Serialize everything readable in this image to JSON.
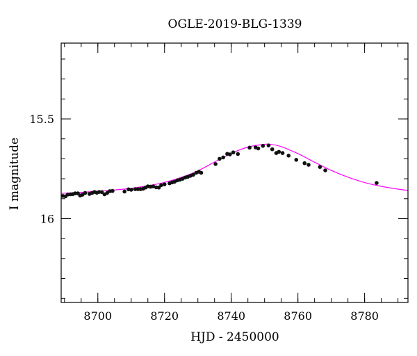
{
  "chart_data": {
    "type": "scatter",
    "title": "OGLE-2019-BLG-1339",
    "xlabel": "HJD - 2450000",
    "ylabel": "I magnitude",
    "xlim": [
      8689,
      8793
    ],
    "ylim": [
      16.42,
      15.12
    ],
    "y_inverted": true,
    "grid": false,
    "x_ticks": [
      8700,
      8720,
      8740,
      8760,
      8780
    ],
    "x_tick_labels": [
      "8700",
      "8720",
      "8740",
      "8760",
      "8780"
    ],
    "y_ticks": [
      15.5,
      16
    ],
    "y_tick_labels": [
      "15.5",
      "16"
    ],
    "x_minor_step": 5,
    "y_minor_step": 0.1,
    "colors": {
      "points": "#111111",
      "model": "#ff00ff",
      "axes": "#000000"
    },
    "series": [
      {
        "type": "scatter",
        "x": [
          8689.5,
          8690.3,
          8691.0,
          8691.8,
          8692.5,
          8693.2,
          8694.0,
          8694.7,
          8695.4,
          8696.2,
          8697.5,
          8698.3,
          8699.0,
          8699.7,
          8700.4,
          8701.2,
          8702.0,
          8702.8,
          8703.6,
          8704.4,
          8708.0,
          8709.2,
          8710.0,
          8711.2,
          8712.0,
          8712.8,
          8713.6,
          8714.3,
          8715.0,
          8715.8,
          8716.6,
          8717.5,
          8718.3,
          8719.0,
          8720.0,
          8721.5,
          8722.3,
          8723.0,
          8723.8,
          8724.6,
          8725.4,
          8726.2,
          8727.0,
          8727.8,
          8728.6,
          8729.5,
          8730.3,
          8731.0,
          8735.3,
          8736.5,
          8737.6,
          8738.8,
          8739.6,
          8740.6,
          8742.0,
          8745.5,
          8747.3,
          8748.1,
          8749.5,
          8751.2,
          8752.3,
          8753.5,
          8754.3,
          8755.4,
          8757.2,
          8759.5,
          8762.0,
          8763.2,
          8766.6,
          8768.2,
          8783.6
        ],
        "y": [
          15.886,
          15.888,
          15.879,
          15.878,
          15.877,
          15.873,
          15.873,
          15.884,
          15.88,
          15.871,
          15.876,
          15.871,
          15.866,
          15.87,
          15.866,
          15.867,
          15.878,
          15.871,
          15.862,
          15.861,
          15.864,
          15.853,
          15.855,
          15.852,
          15.852,
          15.852,
          15.85,
          15.844,
          15.838,
          15.84,
          15.838,
          15.843,
          15.844,
          15.832,
          15.828,
          15.823,
          15.818,
          15.815,
          15.808,
          15.805,
          15.8,
          15.794,
          15.79,
          15.785,
          15.78,
          15.77,
          15.765,
          15.77,
          15.726,
          15.7,
          15.693,
          15.675,
          15.678,
          15.668,
          15.676,
          15.644,
          15.643,
          15.648,
          15.635,
          15.633,
          15.652,
          15.671,
          15.665,
          15.671,
          15.684,
          15.705,
          15.722,
          15.73,
          15.741,
          15.758,
          15.821
        ]
      },
      {
        "type": "line",
        "x": [
          8689,
          8695,
          8700,
          8705,
          8710,
          8715,
          8720,
          8725,
          8730,
          8735,
          8740,
          8745,
          8750,
          8752,
          8755,
          8760,
          8765,
          8770,
          8775,
          8780,
          8785,
          8790,
          8793
        ],
        "y": [
          15.873,
          15.868,
          15.862,
          15.856,
          15.848,
          15.835,
          15.818,
          15.793,
          15.76,
          15.716,
          15.673,
          15.641,
          15.627,
          15.628,
          15.639,
          15.674,
          15.717,
          15.758,
          15.792,
          15.819,
          15.838,
          15.852,
          15.858
        ]
      }
    ]
  }
}
